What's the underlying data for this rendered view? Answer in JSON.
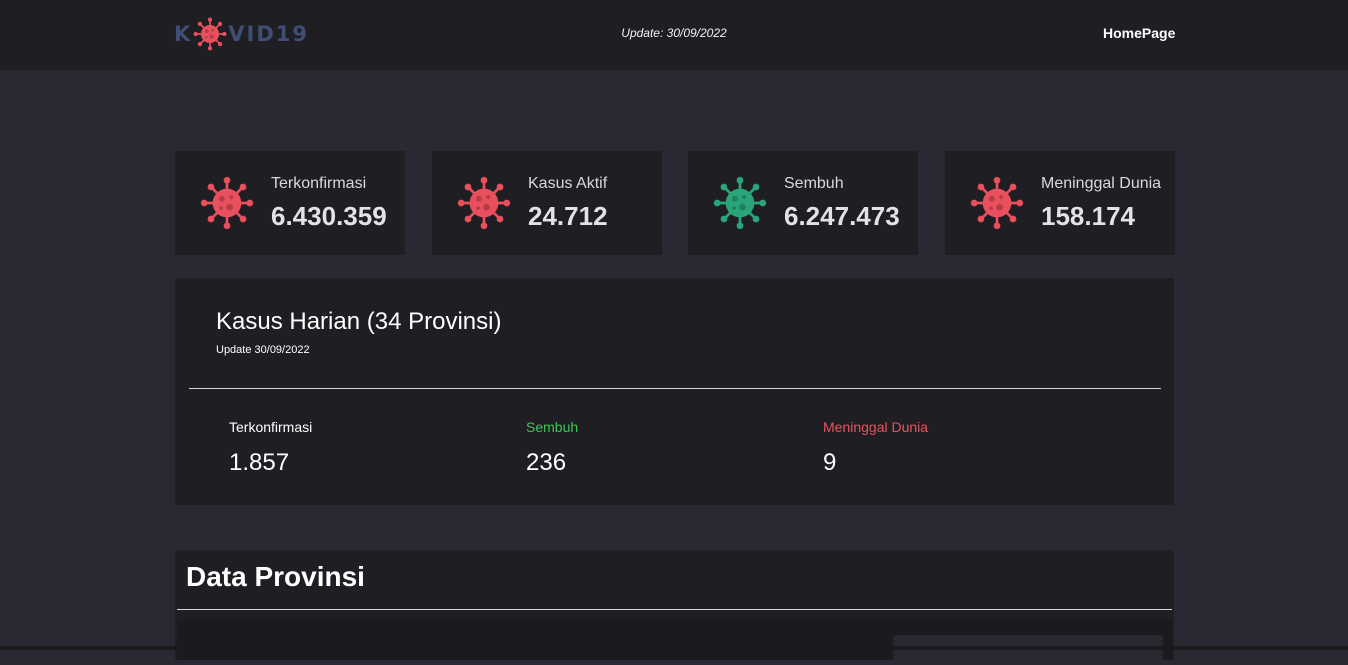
{
  "header": {
    "logo": {
      "left": "K",
      "right": "VID19",
      "icon": "virus-icon"
    },
    "update_text": "Update: 30/09/2022",
    "nav_home": "HomePage"
  },
  "stats": [
    {
      "label": "Terkonfirmasi",
      "value": "6.430.359",
      "icon": "virus-icon",
      "color": "#e94f5d"
    },
    {
      "label": "Kasus Aktif",
      "value": "24.712",
      "icon": "virus-icon",
      "color": "#e94f5d"
    },
    {
      "label": "Sembuh",
      "value": "6.247.473",
      "icon": "virus-icon",
      "color": "#2aa57a"
    },
    {
      "label": "Meninggal Dunia",
      "value": "158.174",
      "icon": "virus-icon",
      "color": "#e94f5d"
    }
  ],
  "daily": {
    "title": "Kasus Harian (34 Provinsi)",
    "subtitle": "Update 30/09/2022",
    "items": [
      {
        "label": "Terkonfirmasi",
        "value": "1.857",
        "color": "#ffffff"
      },
      {
        "label": "Sembuh",
        "value": "236",
        "color": "#3ec45a"
      },
      {
        "label": "Meninggal Dunia",
        "value": "9",
        "color": "#e8545e"
      }
    ]
  },
  "provinces": {
    "title": "Data Provinsi"
  },
  "colors": {
    "background": "#2a2833",
    "panel": "#1f1e23",
    "logo_text": "#3f4e72",
    "danger": "#e94f5d",
    "success": "#2aa57a"
  }
}
